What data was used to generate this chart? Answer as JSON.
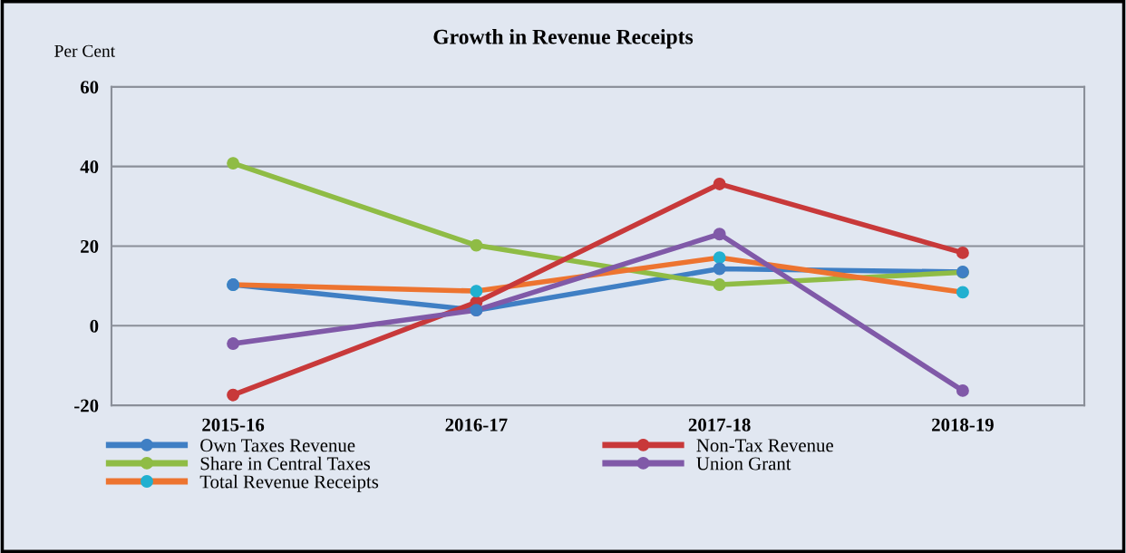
{
  "chart_data": {
    "type": "line",
    "title": "Growth in Revenue Receipts",
    "ylabel": "Per Cent",
    "categories": [
      "2015-16",
      "2016-17",
      "2017-18",
      "2018-19"
    ],
    "series": [
      {
        "name": "Own Taxes Revenue",
        "color": "#3f7fc4",
        "values": [
          10.3,
          3.9,
          14.3,
          13.5
        ]
      },
      {
        "name": "Share in Central Taxes",
        "color": "#8fbc45",
        "values": [
          40.8,
          20.2,
          10.3,
          13.4
        ]
      },
      {
        "name": "Total Revenue Receipts",
        "color": "#ed7430",
        "colors": [
          "#21b0d0",
          "#21b0d0",
          "#21b0d0",
          "#21b0d0"
        ],
        "values": [
          10.3,
          8.7,
          17.1,
          8.4
        ]
      },
      {
        "name": "Non-Tax Revenue",
        "color": "#c8393a",
        "values": [
          -17.4,
          5.9,
          35.6,
          18.3
        ]
      },
      {
        "name": "Union Grant",
        "color": "#8059a8",
        "values": [
          -4.5,
          3.9,
          23.0,
          -16.3
        ]
      }
    ],
    "ylim": [
      -20,
      60
    ],
    "yticks": [
      -20,
      0,
      20,
      40,
      60
    ],
    "grid": "y",
    "legend": "bottom",
    "marker": "circle",
    "line_style": "solid"
  }
}
